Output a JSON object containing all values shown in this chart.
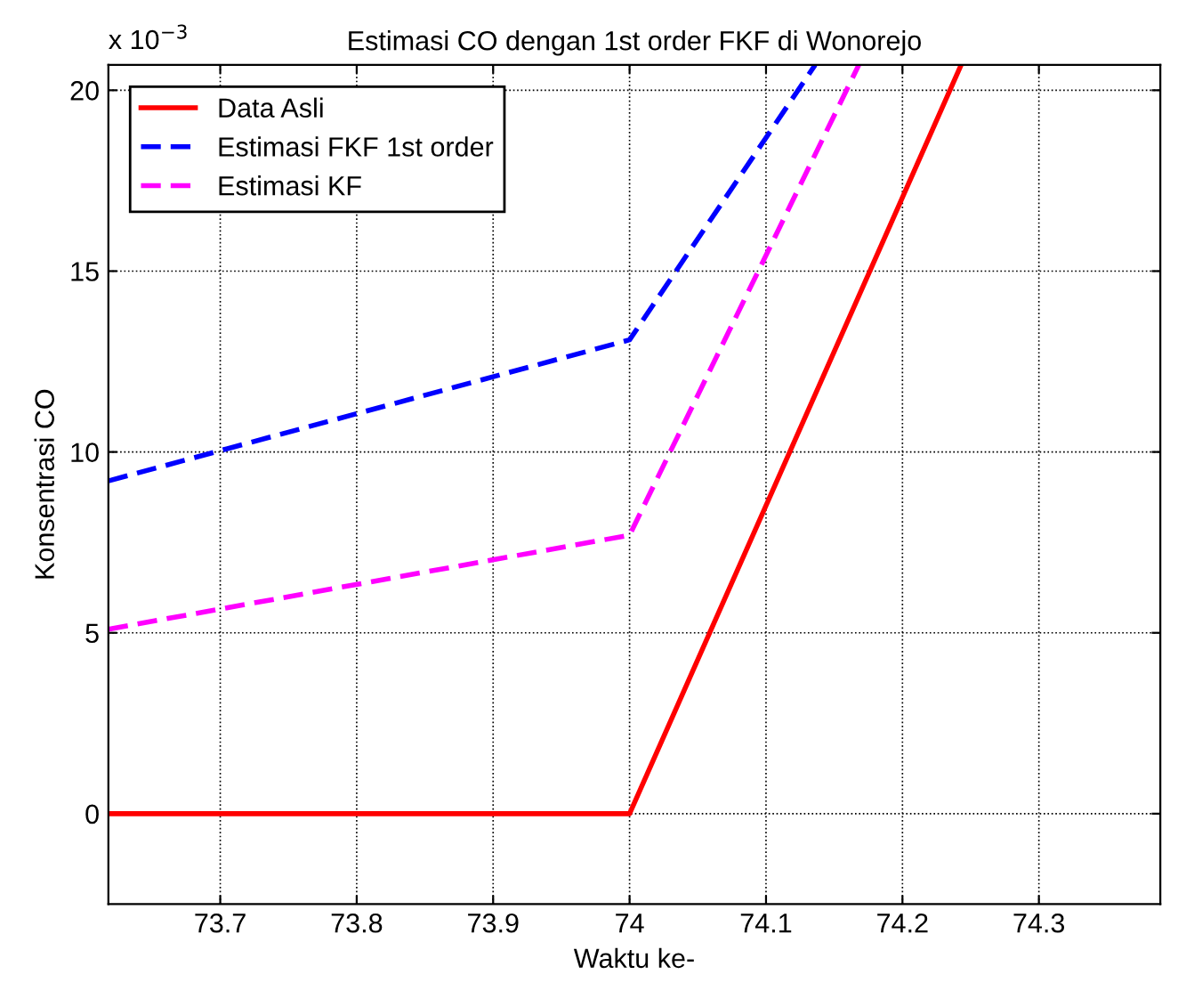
{
  "chart_data": {
    "type": "line",
    "title": "Estimasi CO dengan 1st order FKF di Wonorejo",
    "xlabel": "Waktu ke-",
    "ylabel": "Konsentrasi CO",
    "annotations": [
      "x 10$^{−3}$"
    ],
    "series": [
      {
        "name": "Data Asli",
        "color": "#ff0000",
        "line_style": "solid",
        "x": [
          73.618,
          74.0,
          74.243
        ],
        "values": [
          0,
          0,
          20.7
        ]
      },
      {
        "name": "Estimasi FKF 1st order",
        "color": "#0000ff",
        "line_style": "dashed",
        "x": [
          73.618,
          74.0,
          74.136
        ],
        "values": [
          9.2,
          13.1,
          20.7
        ]
      },
      {
        "name": "Estimasi KF",
        "color": "#ff00ff",
        "line_style": "dashed",
        "x": [
          73.618,
          74.0,
          74.168
        ],
        "values": [
          5.1,
          7.7,
          20.7
        ]
      }
    ],
    "xlim": [
      73.618,
      74.389
    ],
    "ylim": [
      -2.5,
      20.7
    ],
    "xticks": [
      73.7,
      73.8,
      73.9,
      74,
      74.1,
      74.2,
      74.3
    ],
    "yticks": [
      0,
      5,
      10,
      15,
      20
    ],
    "grid": true,
    "legend": "top left",
    "marker": "none"
  }
}
